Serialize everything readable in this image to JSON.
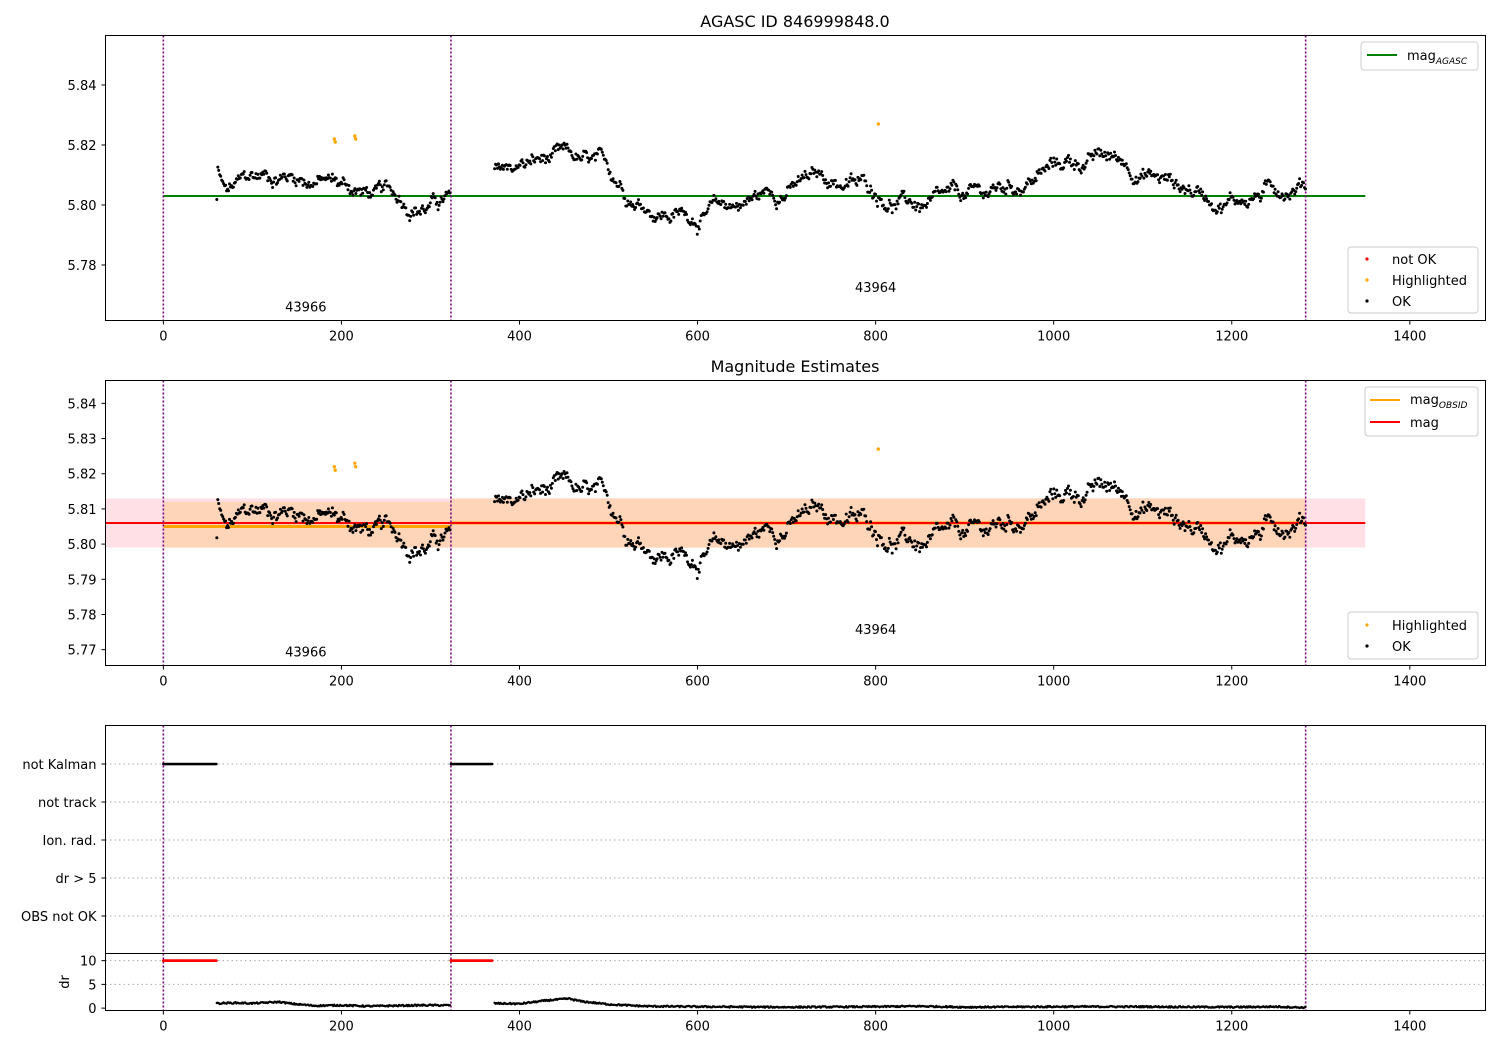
{
  "chart_data": [
    {
      "type": "scatter",
      "title": "AGASC ID 846999848.0",
      "xlabel": "",
      "ylabel": "",
      "xlim": [
        -65,
        1485
      ],
      "ylim": [
        5.7615,
        5.8565
      ],
      "x_ticks": [
        0,
        200,
        400,
        600,
        800,
        1000,
        1200,
        1400
      ],
      "y_ticks": [
        5.78,
        5.8,
        5.82,
        5.84
      ],
      "reference_line": {
        "name": "mag_AGASC",
        "value": 5.803,
        "color": "#008000",
        "x_range": [
          0,
          1350
        ]
      },
      "obsid_boundaries": [
        0,
        323,
        1283
      ],
      "obsid_labels": [
        {
          "text": "43966",
          "x": 160,
          "y": 5.7645
        },
        {
          "text": "43964",
          "x": 800,
          "y": 5.771
        }
      ],
      "legend_lines": [
        {
          "label": "mag",
          "sub": "AGASC",
          "color": "#008000"
        }
      ],
      "legend_points": [
        {
          "label": "not OK",
          "color": "#ff0000"
        },
        {
          "label": "Highlighted",
          "color": "#ffa500"
        },
        {
          "label": "OK",
          "color": "#000000"
        }
      ],
      "highlighted": [
        [
          192,
          5.822
        ],
        [
          193,
          5.821
        ],
        [
          215,
          5.823
        ],
        [
          216,
          5.822
        ],
        [
          803,
          5.827
        ]
      ]
    },
    {
      "type": "scatter",
      "title": "Magnitude Estimates",
      "xlabel": "",
      "ylabel": "",
      "xlim": [
        -65,
        1485
      ],
      "ylim": [
        5.7655,
        5.8465
      ],
      "x_ticks": [
        0,
        200,
        400,
        600,
        800,
        1000,
        1200,
        1400
      ],
      "y_ticks": [
        5.77,
        5.78,
        5.79,
        5.8,
        5.81,
        5.82,
        5.83,
        5.84
      ],
      "mag_band": {
        "low": 5.799,
        "high": 5.813,
        "x_range": [
          -65,
          1350
        ],
        "color": "#ffe0e6"
      },
      "mag_obsid_band": [
        {
          "low": 5.799,
          "high": 5.812,
          "x_range": [
            0,
            323
          ]
        },
        {
          "low": 5.799,
          "high": 5.813,
          "x_range": [
            323,
            1283
          ]
        }
      ],
      "mag_obsid": [
        {
          "value": 5.805,
          "x_range": [
            0,
            323
          ]
        },
        {
          "value": 5.806,
          "x_range": [
            323,
            1283
          ]
        }
      ],
      "mag": {
        "value": 5.806,
        "x_range": [
          -65,
          1350
        ]
      },
      "obsid_boundaries": [
        0,
        323,
        1283
      ],
      "obsid_labels": [
        {
          "text": "43966",
          "x": 160,
          "y": 5.768
        },
        {
          "text": "43964",
          "x": 800,
          "y": 5.7745
        }
      ],
      "legend_lines": [
        {
          "label": "mag",
          "sub": "OBSID",
          "color": "#ffa500"
        },
        {
          "label": "mag",
          "sub": "",
          "color": "#ff0000"
        }
      ],
      "legend_points": [
        {
          "label": "Highlighted",
          "color": "#ffa500"
        },
        {
          "label": "OK",
          "color": "#000000"
        }
      ],
      "highlighted": [
        [
          192,
          5.822
        ],
        [
          193,
          5.821
        ],
        [
          215,
          5.823
        ],
        [
          216,
          5.822
        ],
        [
          803,
          5.827
        ]
      ]
    },
    {
      "type": "scatter",
      "title": "",
      "categories": [
        "not Kalman",
        "not track",
        "Ion. rad.",
        "dr > 5",
        "OBS not OK"
      ],
      "xlim": [
        -65,
        1485
      ],
      "flag_segments": [
        {
          "category": "not Kalman",
          "x_range": [
            0,
            60
          ]
        },
        {
          "category": "not Kalman",
          "x_range": [
            323,
            370
          ]
        }
      ],
      "obsid_boundaries": [
        0,
        323,
        1283
      ]
    },
    {
      "type": "line",
      "title": "",
      "ylabel": "dr",
      "xlim": [
        -65,
        1485
      ],
      "ylim": [
        -0.5,
        11.5
      ],
      "x_ticks": [
        0,
        200,
        400,
        600,
        800,
        1000,
        1200,
        1400
      ],
      "y_ticks": [
        0,
        5,
        10
      ],
      "clipped_segments": [
        {
          "x_range": [
            0,
            60
          ],
          "value": 10
        },
        {
          "x_range": [
            323,
            370
          ],
          "value": 10
        }
      ],
      "dr_profile": [
        [
          60,
          1.0
        ],
        [
          80,
          1.1
        ],
        [
          100,
          1.0
        ],
        [
          130,
          1.3
        ],
        [
          145,
          0.9
        ],
        [
          170,
          0.5
        ],
        [
          200,
          0.6
        ],
        [
          230,
          0.4
        ],
        [
          260,
          0.5
        ],
        [
          290,
          0.6
        ],
        [
          322,
          0.6
        ],
        [
          372,
          1.0
        ],
        [
          400,
          0.9
        ],
        [
          430,
          1.6
        ],
        [
          455,
          2.0
        ],
        [
          470,
          1.4
        ],
        [
          500,
          0.8
        ],
        [
          540,
          0.4
        ],
        [
          600,
          0.3
        ],
        [
          700,
          0.2
        ],
        [
          800,
          0.3
        ],
        [
          850,
          0.4
        ],
        [
          900,
          0.2
        ],
        [
          1000,
          0.3
        ],
        [
          1100,
          0.3
        ],
        [
          1200,
          0.2
        ],
        [
          1250,
          0.3
        ],
        [
          1283,
          0.1
        ]
      ],
      "obsid_boundaries": [
        0,
        323,
        1283
      ]
    }
  ]
}
